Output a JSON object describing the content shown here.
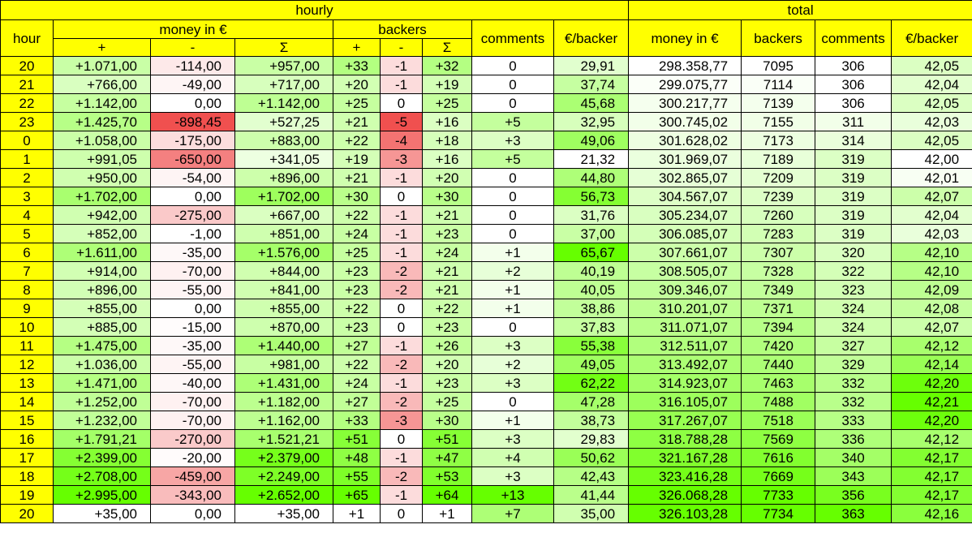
{
  "headers": {
    "hourly": "hourly",
    "total": "total",
    "hour": "hour",
    "money": "money in €",
    "backers": "backers",
    "comments": "comments",
    "per_backer": "€/backer",
    "total_money": "money in €",
    "total_backers": "backers",
    "total_comments": "comments",
    "total_per_backer": "€/backer",
    "plus": "+",
    "minus": "-",
    "sum": "Σ",
    "backers_plus": "+",
    "backers_minus": "-",
    "backers_sum": "Σ"
  },
  "colors": {
    "header": "#ffff00",
    "positive_max": "#66ff00",
    "negative_max": "#f0504f",
    "neutral": "#ffffff"
  },
  "rows": [
    [
      "20",
      "+1.071,00",
      "-114,00",
      "+957,00",
      "+33",
      "-1",
      "+32",
      "0",
      "29,91",
      "298.358,77",
      "7095",
      "306",
      "42,05"
    ],
    [
      "21",
      "+766,00",
      "-49,00",
      "+717,00",
      "+20",
      "-1",
      "+19",
      "0",
      "37,74",
      "299.075,77",
      "7114",
      "306",
      "42,04"
    ],
    [
      "22",
      "+1.142,00",
      "0,00",
      "+1.142,00",
      "+25",
      "0",
      "+25",
      "0",
      "45,68",
      "300.217,77",
      "7139",
      "306",
      "42,05"
    ],
    [
      "23",
      "+1.425,70",
      "-898,45",
      "+527,25",
      "+21",
      "-5",
      "+16",
      "+5",
      "32,95",
      "300.745,02",
      "7155",
      "311",
      "42,03"
    ],
    [
      "0",
      "+1.058,00",
      "-175,00",
      "+883,00",
      "+22",
      "-4",
      "+18",
      "+3",
      "49,06",
      "301.628,02",
      "7173",
      "314",
      "42,05"
    ],
    [
      "1",
      "+991,05",
      "-650,00",
      "+341,05",
      "+19",
      "-3",
      "+16",
      "+5",
      "21,32",
      "301.969,07",
      "7189",
      "319",
      "42,00"
    ],
    [
      "2",
      "+950,00",
      "-54,00",
      "+896,00",
      "+21",
      "-1",
      "+20",
      "0",
      "44,80",
      "302.865,07",
      "7209",
      "319",
      "42,01"
    ],
    [
      "3",
      "+1.702,00",
      "0,00",
      "+1.702,00",
      "+30",
      "0",
      "+30",
      "0",
      "56,73",
      "304.567,07",
      "7239",
      "319",
      "42,07"
    ],
    [
      "4",
      "+942,00",
      "-275,00",
      "+667,00",
      "+22",
      "-1",
      "+21",
      "0",
      "31,76",
      "305.234,07",
      "7260",
      "319",
      "42,04"
    ],
    [
      "5",
      "+852,00",
      "-1,00",
      "+851,00",
      "+24",
      "-1",
      "+23",
      "0",
      "37,00",
      "306.085,07",
      "7283",
      "319",
      "42,03"
    ],
    [
      "6",
      "+1.611,00",
      "-35,00",
      "+1.576,00",
      "+25",
      "-1",
      "+24",
      "+1",
      "65,67",
      "307.661,07",
      "7307",
      "320",
      "42,10"
    ],
    [
      "7",
      "+914,00",
      "-70,00",
      "+844,00",
      "+23",
      "-2",
      "+21",
      "+2",
      "40,19",
      "308.505,07",
      "7328",
      "322",
      "42,10"
    ],
    [
      "8",
      "+896,00",
      "-55,00",
      "+841,00",
      "+23",
      "-2",
      "+21",
      "+1",
      "40,05",
      "309.346,07",
      "7349",
      "323",
      "42,09"
    ],
    [
      "9",
      "+855,00",
      "0,00",
      "+855,00",
      "+22",
      "0",
      "+22",
      "+1",
      "38,86",
      "310.201,07",
      "7371",
      "324",
      "42,08"
    ],
    [
      "10",
      "+885,00",
      "-15,00",
      "+870,00",
      "+23",
      "0",
      "+23",
      "0",
      "37,83",
      "311.071,07",
      "7394",
      "324",
      "42,07"
    ],
    [
      "11",
      "+1.475,00",
      "-35,00",
      "+1.440,00",
      "+27",
      "-1",
      "+26",
      "+3",
      "55,38",
      "312.511,07",
      "7420",
      "327",
      "42,12"
    ],
    [
      "12",
      "+1.036,00",
      "-55,00",
      "+981,00",
      "+22",
      "-2",
      "+20",
      "+2",
      "49,05",
      "313.492,07",
      "7440",
      "329",
      "42,14"
    ],
    [
      "13",
      "+1.471,00",
      "-40,00",
      "+1.431,00",
      "+24",
      "-1",
      "+23",
      "+3",
      "62,22",
      "314.923,07",
      "7463",
      "332",
      "42,20"
    ],
    [
      "14",
      "+1.252,00",
      "-70,00",
      "+1.182,00",
      "+27",
      "-2",
      "+25",
      "0",
      "47,28",
      "316.105,07",
      "7488",
      "332",
      "42,21"
    ],
    [
      "15",
      "+1.232,00",
      "-70,00",
      "+1.162,00",
      "+33",
      "-3",
      "+30",
      "+1",
      "38,73",
      "317.267,07",
      "7518",
      "333",
      "42,20"
    ],
    [
      "16",
      "+1.791,21",
      "-270,00",
      "+1.521,21",
      "+51",
      "0",
      "+51",
      "+3",
      "29,83",
      "318.788,28",
      "7569",
      "336",
      "42,12"
    ],
    [
      "17",
      "+2.399,00",
      "-20,00",
      "+2.379,00",
      "+48",
      "-1",
      "+47",
      "+4",
      "50,62",
      "321.167,28",
      "7616",
      "340",
      "42,17"
    ],
    [
      "18",
      "+2.708,00",
      "-459,00",
      "+2.249,00",
      "+55",
      "-2",
      "+53",
      "+3",
      "42,43",
      "323.416,28",
      "7669",
      "343",
      "42,17"
    ],
    [
      "19",
      "+2.995,00",
      "-343,00",
      "+2.652,00",
      "+65",
      "-1",
      "+64",
      "+13",
      "41,44",
      "326.068,28",
      "7733",
      "356",
      "42,17"
    ],
    [
      "20",
      "+35,00",
      "0,00",
      "+35,00",
      "+1",
      "0",
      "+1",
      "+7",
      "35,00",
      "326.103,28",
      "7734",
      "363",
      "42,16"
    ]
  ]
}
